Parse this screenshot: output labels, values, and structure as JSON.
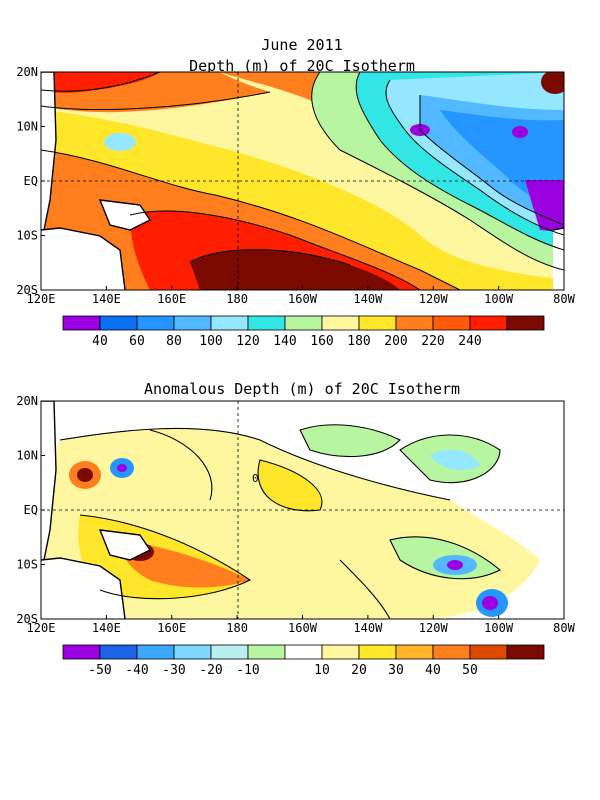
{
  "figure": {
    "title": "June 2011"
  },
  "panels": [
    {
      "title": "Depth (m) of 20C Isotherm",
      "lat_labels": [
        "20N",
        "10N",
        "EQ",
        "10S",
        "20S"
      ],
      "lon_labels": [
        "120E",
        "140E",
        "160E",
        "180",
        "160W",
        "140W",
        "120W",
        "100W",
        "80W"
      ],
      "colorbar": {
        "colors": [
          "#9b00e0",
          "#0a6ff0",
          "#2596ff",
          "#52b8ff",
          "#95e6ff",
          "#33e6e6",
          "#b7f5a0",
          "#fff7a0",
          "#ffe62a",
          "#ff7e1e",
          "#ff5a0a",
          "#ff1f00",
          "#7a0a00"
        ],
        "labels": [
          "40",
          "60",
          "80",
          "100",
          "120",
          "140",
          "160",
          "180",
          "200",
          "220",
          "240"
        ]
      }
    },
    {
      "title": "Anomalous Depth (m) of 20C Isotherm",
      "lat_labels": [
        "20N",
        "10N",
        "EQ",
        "10S",
        "20S"
      ],
      "lon_labels": [
        "120E",
        "140E",
        "160E",
        "180",
        "160W",
        "140W",
        "120W",
        "100W",
        "80W"
      ],
      "contour_label": "0",
      "colorbar": {
        "colors": [
          "#9b00e0",
          "#1d63e8",
          "#3aa8ff",
          "#7fd6ff",
          "#b8f0f0",
          "#b7f5a0",
          "#ffffff",
          "#fff7a0",
          "#ffe62a",
          "#ffb327",
          "#ff7e1e",
          "#e04a00",
          "#7a0a00"
        ],
        "labels": [
          "-50",
          "-40",
          "-30",
          "-20",
          "-10",
          "10",
          "20",
          "30",
          "40",
          "50"
        ]
      }
    }
  ]
}
